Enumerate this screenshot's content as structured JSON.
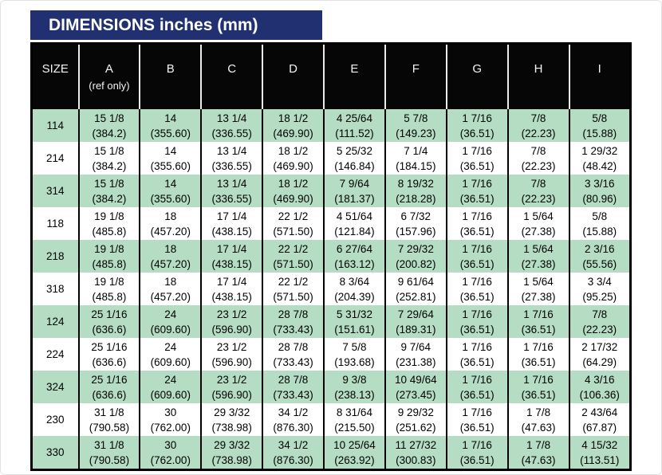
{
  "title": "DIMENSIONS inches (mm)",
  "colors": {
    "title_bar_bg": "#203070",
    "header_bg": "#060606",
    "shaded_row_bg": "#b4ddc3",
    "plain_row_bg": "#ffffff"
  },
  "table": {
    "columns": [
      {
        "label": "SIZE",
        "sublabel": ""
      },
      {
        "label": "A",
        "sublabel": "(ref only)"
      },
      {
        "label": "B",
        "sublabel": ""
      },
      {
        "label": "C",
        "sublabel": ""
      },
      {
        "label": "D",
        "sublabel": ""
      },
      {
        "label": "E",
        "sublabel": ""
      },
      {
        "label": "F",
        "sublabel": ""
      },
      {
        "label": "G",
        "sublabel": ""
      },
      {
        "label": "H",
        "sublabel": ""
      },
      {
        "label": "I",
        "sublabel": ""
      }
    ],
    "rows": [
      {
        "size": "114",
        "shaded": true,
        "cells": [
          [
            "15 1/8",
            "(384.2)"
          ],
          [
            "14",
            "(355.60)"
          ],
          [
            "13 1/4",
            "(336.55)"
          ],
          [
            "18 1/2",
            "(469.90)"
          ],
          [
            "4 25/64",
            "(111.52)"
          ],
          [
            "5 7/8",
            "(149.23)"
          ],
          [
            "1 7/16",
            "(36.51)"
          ],
          [
            "7/8",
            "(22.23)"
          ],
          [
            "5/8",
            "(15.88)"
          ]
        ]
      },
      {
        "size": "214",
        "shaded": false,
        "cells": [
          [
            "15 1/8",
            "(384.2)"
          ],
          [
            "14",
            "(355.60)"
          ],
          [
            "13 1/4",
            "(336.55)"
          ],
          [
            "18 1/2",
            "(469.90)"
          ],
          [
            "5 25/32",
            "(146.84)"
          ],
          [
            "7 1/4",
            "(184.15)"
          ],
          [
            "1 7/16",
            "(36.51)"
          ],
          [
            "7/8",
            "(22.23)"
          ],
          [
            "1 29/32",
            "(48.42)"
          ]
        ]
      },
      {
        "size": "314",
        "shaded": true,
        "cells": [
          [
            "15 1/8",
            "(384.2)"
          ],
          [
            "14",
            "(355.60)"
          ],
          [
            "13 1/4",
            "(336.55)"
          ],
          [
            "18 1/2",
            "(469.90)"
          ],
          [
            "7 9/64",
            "(181.37)"
          ],
          [
            "8 19/32",
            "(218.28)"
          ],
          [
            "1 7/16",
            "(36.51)"
          ],
          [
            "7/8",
            "(22.23)"
          ],
          [
            "3 3/16",
            "(80.96)"
          ]
        ]
      },
      {
        "size": "118",
        "shaded": false,
        "cells": [
          [
            "19 1/8",
            "(485.8)"
          ],
          [
            "18",
            "(457.20)"
          ],
          [
            "17 1/4",
            "(438.15)"
          ],
          [
            "22 1/2",
            "(571.50)"
          ],
          [
            "4 51/64",
            "(121.84)"
          ],
          [
            "6 7/32",
            "(157.96)"
          ],
          [
            "1 7/16",
            "(36.51)"
          ],
          [
            "1 5/64",
            "(27.38)"
          ],
          [
            "5/8",
            "(15.88)"
          ]
        ]
      },
      {
        "size": "218",
        "shaded": true,
        "cells": [
          [
            "19 1/8",
            "(485.8)"
          ],
          [
            "18",
            "(457.20)"
          ],
          [
            "17 1/4",
            "(438.15)"
          ],
          [
            "22 1/2",
            "(571.50)"
          ],
          [
            "6 27/64",
            "(163.12)"
          ],
          [
            "7 29/32",
            "(200.82)"
          ],
          [
            "1 7/16",
            "(36.51)"
          ],
          [
            "1 5/64",
            "(27.38)"
          ],
          [
            "2 3/16",
            "(55.56)"
          ]
        ]
      },
      {
        "size": "318",
        "shaded": false,
        "cells": [
          [
            "19 1/8",
            "(485.8)"
          ],
          [
            "18",
            "(457.20)"
          ],
          [
            "17 1/4",
            "(438.15)"
          ],
          [
            "22 1/2",
            "(571.50)"
          ],
          [
            "8 3/64",
            "(204.39)"
          ],
          [
            "9 61/64",
            "(252.81)"
          ],
          [
            "1 7/16",
            "(36.51)"
          ],
          [
            "1 5/64",
            "(27.38)"
          ],
          [
            "3 3/4",
            "(95.25)"
          ]
        ]
      },
      {
        "size": "124",
        "shaded": true,
        "cells": [
          [
            "25 1/16",
            "(636.6)"
          ],
          [
            "24",
            "(609.60)"
          ],
          [
            "23 1/2",
            "(596.90)"
          ],
          [
            "28 7/8",
            "(733.43)"
          ],
          [
            "5 31/32",
            "(151.61)"
          ],
          [
            "7 29/64",
            "(189.31)"
          ],
          [
            "1 7/16",
            "(36.51)"
          ],
          [
            "1 7/16",
            "(36.51)"
          ],
          [
            "7/8",
            "(22.23)"
          ]
        ]
      },
      {
        "size": "224",
        "shaded": false,
        "cells": [
          [
            "25 1/16",
            "(636.6)"
          ],
          [
            "24",
            "(609.60)"
          ],
          [
            "23 1/2",
            "(596.90)"
          ],
          [
            "28 7/8",
            "(733.43)"
          ],
          [
            "7 5/8",
            "(193.68)"
          ],
          [
            "9 7/64",
            "(231.38)"
          ],
          [
            "1 7/16",
            "(36.51)"
          ],
          [
            "1 7/16",
            "(36.51)"
          ],
          [
            "2 17/32",
            "(64.29)"
          ]
        ]
      },
      {
        "size": "324",
        "shaded": true,
        "cells": [
          [
            "25 1/16",
            "(636.6)"
          ],
          [
            "24",
            "(609.60)"
          ],
          [
            "23 1/2",
            "(596.90)"
          ],
          [
            "28 7/8",
            "(733.43)"
          ],
          [
            "9 3/8",
            "(238.13)"
          ],
          [
            "10 49/64",
            "(273.45)"
          ],
          [
            "1 7/16",
            "(36.51)"
          ],
          [
            "1 7/16",
            "(36.51)"
          ],
          [
            "4 3/16",
            "(106.36)"
          ]
        ]
      },
      {
        "size": "230",
        "shaded": false,
        "cells": [
          [
            "31 1/8",
            "(790.58)"
          ],
          [
            "30",
            "(762.00)"
          ],
          [
            "29 3/32",
            "(738.98)"
          ],
          [
            "34 1/2",
            "(876.30)"
          ],
          [
            "8 31/64",
            "(215.50)"
          ],
          [
            "9 29/32",
            "(251.62)"
          ],
          [
            "1 7/16",
            "(36.51)"
          ],
          [
            "1 7/8",
            "(47.63)"
          ],
          [
            "2 43/64",
            "(67.87)"
          ]
        ]
      },
      {
        "size": "330",
        "shaded": true,
        "cells": [
          [
            "31 1/8",
            "(790.58)"
          ],
          [
            "30",
            "(762.00)"
          ],
          [
            "29 3/32",
            "(738.98)"
          ],
          [
            "34 1/2",
            "(876.30)"
          ],
          [
            "10 25/64",
            "(263.92)"
          ],
          [
            "11 27/32",
            "(300.83)"
          ],
          [
            "1 7/16",
            "(36.51)"
          ],
          [
            "1 7/8",
            "(47.63)"
          ],
          [
            "4 15/32",
            "(113.51)"
          ]
        ]
      }
    ]
  }
}
